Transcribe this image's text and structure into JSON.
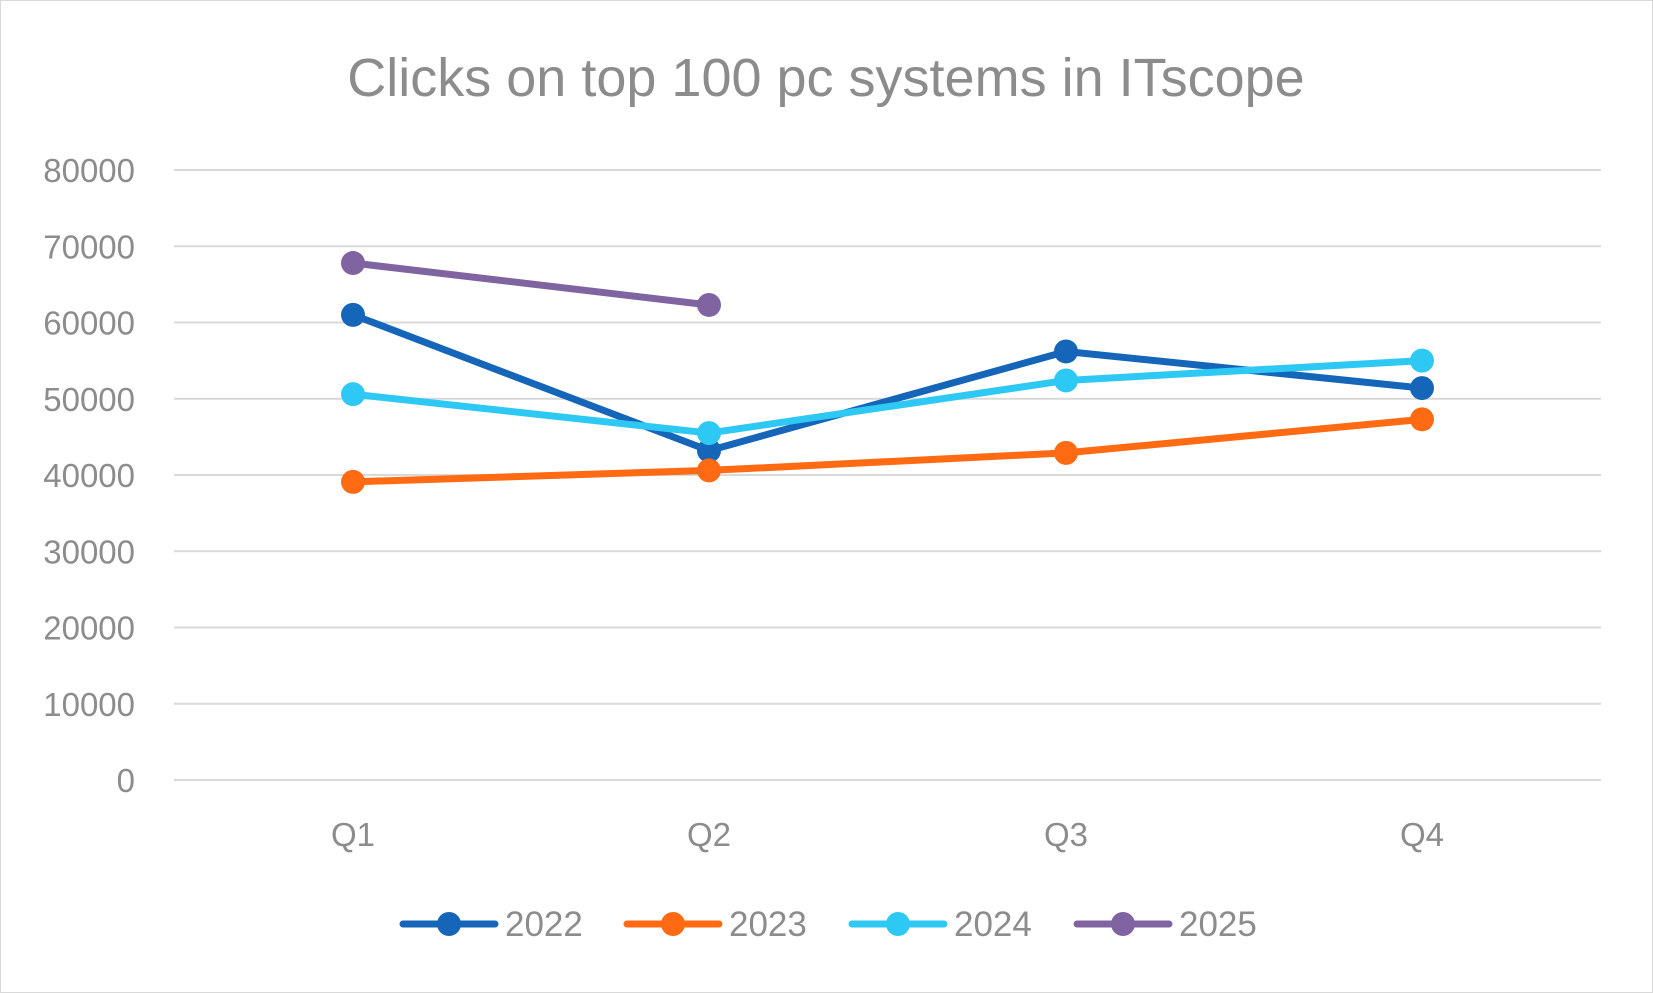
{
  "chart_data": {
    "type": "line",
    "title": "Clicks on top 100 pc systems in ITscope",
    "xlabel": "",
    "ylabel": "",
    "categories": [
      "Q1",
      "Q2",
      "Q3",
      "Q4"
    ],
    "ylim": [
      0,
      80000
    ],
    "yticks": [
      0,
      10000,
      20000,
      30000,
      40000,
      50000,
      60000,
      70000,
      80000
    ],
    "grid": true,
    "legend_position": "bottom",
    "series": [
      {
        "name": "2022",
        "color": "#1565b8",
        "values": [
          61000,
          43200,
          56200,
          51400
        ]
      },
      {
        "name": "2023",
        "color": "#ff6a13",
        "values": [
          39100,
          40600,
          42900,
          47300
        ]
      },
      {
        "name": "2024",
        "color": "#2ec8f5",
        "values": [
          50600,
          45500,
          52400,
          55000
        ]
      },
      {
        "name": "2025",
        "color": "#8064a2",
        "values": [
          67800,
          62300,
          null,
          null
        ]
      }
    ]
  }
}
